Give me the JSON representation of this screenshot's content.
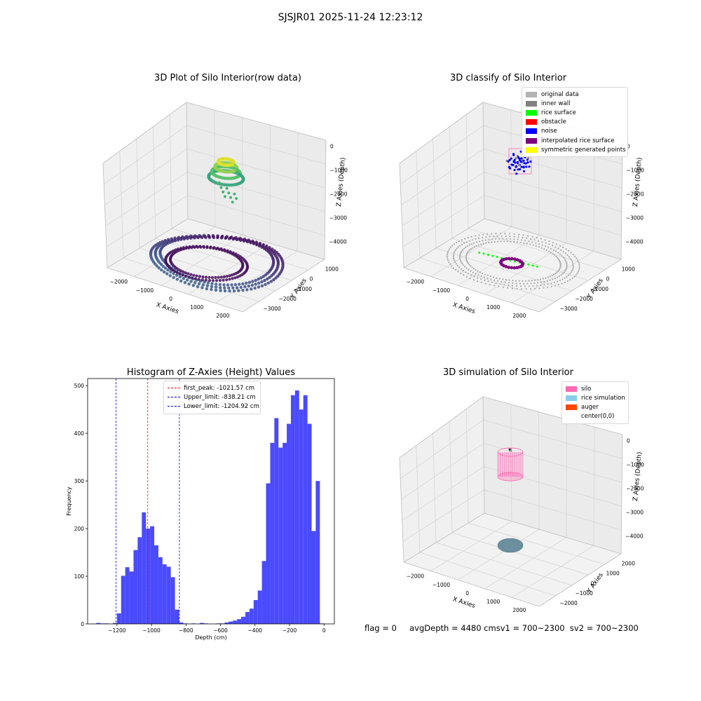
{
  "figure": {
    "suptitle": "SJSJR01 2025-11-24 12:23:12",
    "footer": "flag = 0     avgDepth = 4480 cmsv1 = 700~2300  sv2 = 700~2300"
  },
  "chart_data": [
    {
      "type": "scatter",
      "subtype": "3d-scatter",
      "title": "3D Plot of Silo Interior(row data)",
      "xlabel": "X Axies",
      "ylabel": "Y Axies",
      "zlabel": "Z Axies (Depth)",
      "xticks": [
        "−2000",
        "−1000",
        "0",
        "1000",
        "2000"
      ],
      "yticks": [
        "1000",
        "0",
        "−1000",
        "−2000",
        "−3000"
      ],
      "zticks": [
        "0",
        "−1000",
        "−2000",
        "−3000",
        "−4000"
      ],
      "xlim": [
        -2500,
        2500
      ],
      "ylim": [
        -3000,
        1500
      ],
      "zlim": [
        -4500,
        0
      ],
      "colormap": "viridis",
      "series": [
        {
          "shape": "ring",
          "cx": 0,
          "cy": -800,
          "r": 2100,
          "z": -4200
        },
        {
          "shape": "ring",
          "cx": 0,
          "cy": -800,
          "r": 1400,
          "z": -4300
        },
        {
          "shape": "cluster",
          "cx": -150,
          "cy": 0,
          "r": 350,
          "z": -700
        }
      ]
    },
    {
      "type": "scatter",
      "subtype": "3d-scatter",
      "title": "3D classify of Silo Interior",
      "xlabel": "X Axies",
      "ylabel": "Y Axies",
      "zlabel": "Z Axies (Depth)",
      "xticks": [
        "−2000",
        "−1000",
        "0",
        "1000",
        "2000"
      ],
      "yticks": [
        "1000",
        "0",
        "−1000",
        "−2000",
        "−3000"
      ],
      "zticks": [
        "0",
        "−1000",
        "−2000",
        "−3000",
        "−4000"
      ],
      "legend": [
        {
          "label": "original data",
          "color": "#b3b3b3"
        },
        {
          "label": "inner wall",
          "color": "#808080"
        },
        {
          "label": "rice surface",
          "color": "#00ff00"
        },
        {
          "label": "obstacle",
          "color": "#ff0000"
        },
        {
          "label": "noise",
          "color": "#0000ff"
        },
        {
          "label": "interpolated rice surface",
          "color": "#800080"
        },
        {
          "label": "symmetric generated points",
          "color": "#ffff00"
        }
      ],
      "legend_loc": "upper right"
    },
    {
      "type": "bar",
      "subtype": "histogram",
      "title": "Histogram of Z-Axies (Height) Values",
      "xlabel": "Depth (cm)",
      "ylabel": "Frequency",
      "xlim": [
        -1370,
        60
      ],
      "ylim": [
        0,
        515
      ],
      "xticks": [
        -1200,
        -1000,
        -800,
        -600,
        -400,
        -200,
        0
      ],
      "yticks": [
        0,
        100,
        200,
        300,
        400,
        500
      ],
      "bar_color": "#4a4aff",
      "bins": [
        [
          -1320,
          -1296,
          2
        ],
        [
          -1296,
          -1272,
          1
        ],
        [
          -1272,
          -1248,
          1
        ],
        [
          -1248,
          -1224,
          0
        ],
        [
          -1224,
          -1200,
          2
        ],
        [
          -1200,
          -1176,
          22
        ],
        [
          -1176,
          -1152,
          101
        ],
        [
          -1152,
          -1128,
          119
        ],
        [
          -1128,
          -1104,
          110
        ],
        [
          -1104,
          -1080,
          155
        ],
        [
          -1080,
          -1056,
          182
        ],
        [
          -1056,
          -1032,
          234
        ],
        [
          -1032,
          -1008,
          200
        ],
        [
          -1008,
          -984,
          205
        ],
        [
          -984,
          -960,
          165
        ],
        [
          -960,
          -936,
          140
        ],
        [
          -936,
          -912,
          125
        ],
        [
          -912,
          -888,
          120
        ],
        [
          -888,
          -864,
          98
        ],
        [
          -864,
          -840,
          30
        ],
        [
          -840,
          -816,
          3
        ],
        [
          -816,
          -792,
          1
        ],
        [
          -792,
          -768,
          0
        ],
        [
          -768,
          -744,
          1
        ],
        [
          -744,
          -720,
          0
        ],
        [
          -720,
          -696,
          2
        ],
        [
          -696,
          -672,
          1
        ],
        [
          -672,
          -648,
          0
        ],
        [
          -648,
          -624,
          0
        ],
        [
          -624,
          -600,
          1
        ],
        [
          -600,
          -576,
          1
        ],
        [
          -576,
          -552,
          3
        ],
        [
          -552,
          -528,
          5
        ],
        [
          -528,
          -504,
          7
        ],
        [
          -504,
          -480,
          10
        ],
        [
          -480,
          -456,
          15
        ],
        [
          -456,
          -432,
          25
        ],
        [
          -432,
          -408,
          32
        ],
        [
          -408,
          -384,
          50
        ],
        [
          -384,
          -360,
          70
        ],
        [
          -360,
          -336,
          132
        ],
        [
          -336,
          -312,
          295
        ],
        [
          -312,
          -288,
          380
        ],
        [
          -288,
          -264,
          432
        ],
        [
          -264,
          -240,
          370
        ],
        [
          -240,
          -216,
          380
        ],
        [
          -216,
          -192,
          420
        ],
        [
          -192,
          -168,
          480
        ],
        [
          -168,
          -144,
          490
        ],
        [
          -144,
          -120,
          450
        ],
        [
          -120,
          -96,
          480
        ],
        [
          -96,
          -72,
          420
        ],
        [
          -72,
          -48,
          195
        ],
        [
          -48,
          -24,
          300
        ],
        [
          -24,
          0,
          1
        ]
      ],
      "vlines": [
        {
          "label": "first_peak: -1021.57 cm",
          "x": -1021.57,
          "color": "#ff0000"
        },
        {
          "label": "Upper_limit: -838.21 cm",
          "x": -838.21,
          "color": "#0000ff"
        },
        {
          "label": "Lower_limit: -1204.92 cm",
          "x": -1204.92,
          "color": "#0000ff"
        }
      ]
    },
    {
      "type": "scatter",
      "subtype": "3d-surface",
      "title": "3D simulation of Silo Interior",
      "xlabel": "X Axies",
      "ylabel": "Y Axies",
      "zlabel": "Z Axies (Depth)",
      "xticks": [
        "−2000",
        "−1000",
        "0",
        "1000",
        "2000"
      ],
      "yticks": [
        "2000",
        "1000",
        "0",
        "−1000",
        "−2000"
      ],
      "zticks": [
        "0",
        "−1000",
        "−2000",
        "−3000",
        "−4000"
      ],
      "legend": [
        {
          "label": "silo",
          "color": "#ff69b4"
        },
        {
          "label": "rice simulation",
          "color": "#87ceeb"
        },
        {
          "label": "auger",
          "color": "#ff4500"
        },
        {
          "label": "center(0,0)",
          "color": ""
        }
      ],
      "legend_loc": "upper right"
    }
  ]
}
